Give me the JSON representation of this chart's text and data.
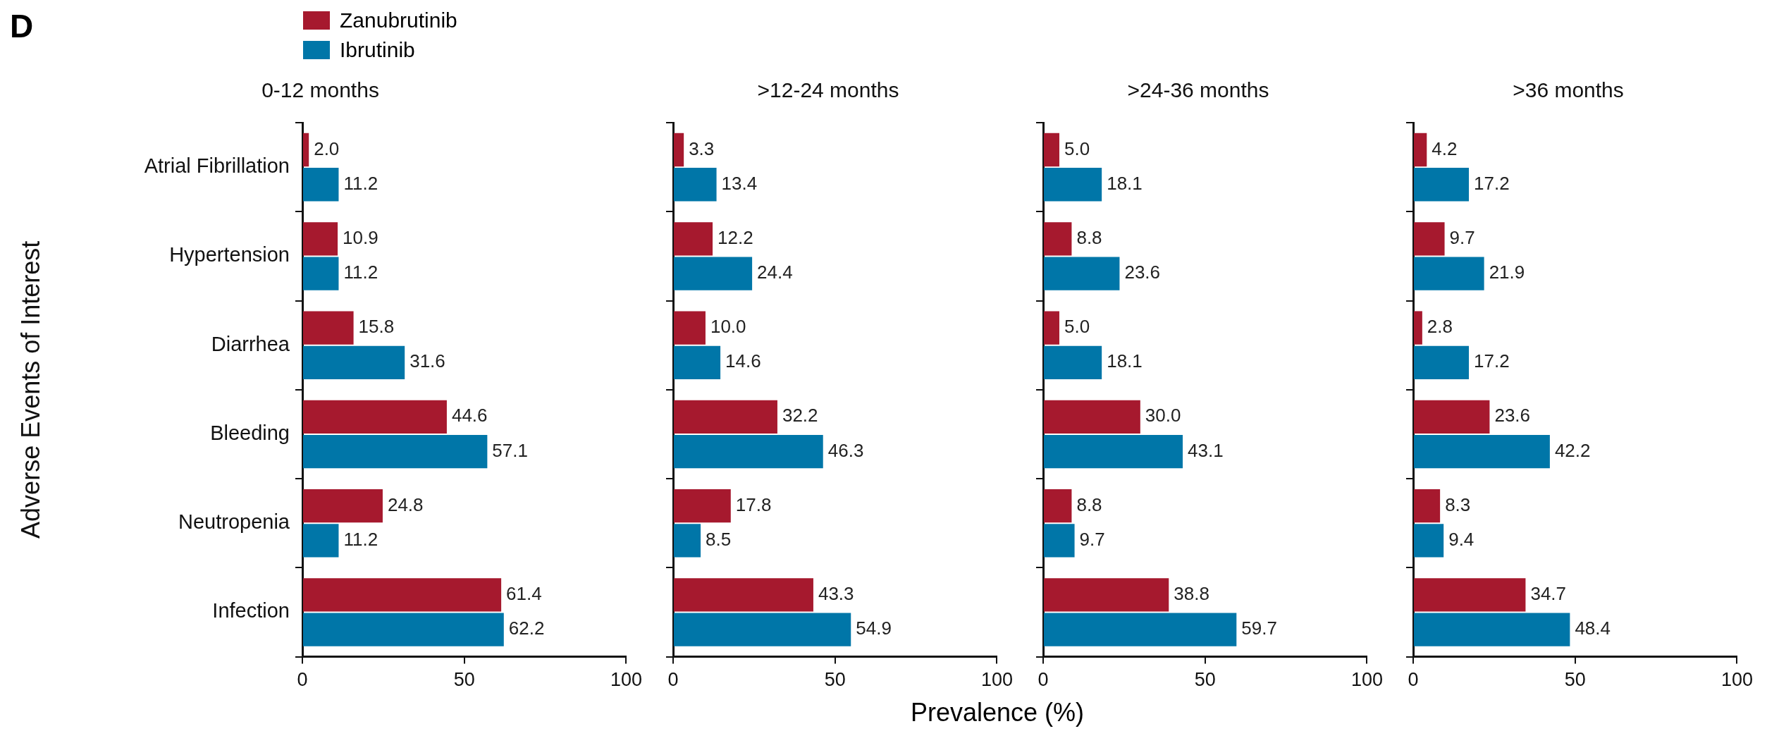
{
  "chart_data": [
    {
      "type": "bar",
      "orientation": "horizontal",
      "title": "0-12 months",
      "ylabel": "Adverse Events of Interest",
      "annotations": [
        "D"
      ],
      "legend": "top left",
      "categories": [
        "Atrial Fibrillation",
        "Hypertension",
        "Diarrhea",
        "Bleeding",
        "Neutropenia",
        "Infection"
      ],
      "series": [
        {
          "name": "Zanubrutinib",
          "color": "#a6192e",
          "values": [
            2.0,
            10.9,
            15.8,
            44.6,
            24.8,
            61.4
          ],
          "value_labels": [
            "2.0",
            "10.9",
            "15.8",
            "44.6",
            "24.8",
            "61.4"
          ]
        },
        {
          "name": "Ibrutinib",
          "color": "#0076a8",
          "values": [
            11.2,
            11.2,
            31.6,
            57.1,
            11.2,
            62.2
          ],
          "value_labels": [
            "11.2",
            "11.2",
            "31.6",
            "57.1",
            "11.2",
            "62.2"
          ]
        }
      ],
      "xlim": [
        0,
        100
      ],
      "xticks": [
        0,
        50,
        100
      ],
      "grid": false
    },
    {
      "type": "bar",
      "orientation": "horizontal",
      "title": ">12-24 months",
      "xlabel": "Prevalence (%)",
      "tick_labels": "x",
      "categories": [
        null,
        null,
        null,
        null,
        null,
        null
      ],
      "series": [
        {
          "color": "#a6192e",
          "values": [
            3.3,
            12.2,
            10.0,
            32.2,
            17.8,
            43.3
          ],
          "value_labels": [
            "3.3",
            "12.2",
            "10.0",
            "32.2",
            "17.8",
            "43.3"
          ]
        },
        {
          "color": "#0076a8",
          "values": [
            13.4,
            24.4,
            14.6,
            46.3,
            8.5,
            54.9
          ],
          "value_labels": [
            "13.4",
            "24.4",
            "14.6",
            "46.3",
            "8.5",
            "54.9"
          ]
        }
      ],
      "xlim": [
        0,
        100
      ],
      "xticks": [
        0,
        50,
        100
      ],
      "grid": false
    },
    {
      "type": "bar",
      "orientation": "horizontal",
      "title": ">24-36 months",
      "tick_labels": "x",
      "categories": [
        null,
        null,
        null,
        null,
        null,
        null
      ],
      "series": [
        {
          "color": "#a6192e",
          "values": [
            5.0,
            8.8,
            5.0,
            30.0,
            8.8,
            38.8
          ],
          "value_labels": [
            "5.0",
            "8.8",
            "5.0",
            "30.0",
            "8.8",
            "38.8"
          ]
        },
        {
          "color": "#0076a8",
          "values": [
            18.1,
            23.6,
            18.1,
            43.1,
            9.7,
            59.7
          ],
          "value_labels": [
            "18.1",
            "23.6",
            "18.1",
            "43.1",
            "9.7",
            "59.7"
          ]
        }
      ],
      "xlim": [
        0,
        100
      ],
      "xticks": [
        0,
        50,
        100
      ],
      "grid": false
    },
    {
      "type": "bar",
      "orientation": "horizontal",
      "title": ">36 months",
      "tick_labels": "x",
      "categories": [
        null,
        null,
        null,
        null,
        null,
        null
      ],
      "series": [
        {
          "color": "#a6192e",
          "values": [
            4.2,
            9.7,
            2.8,
            23.6,
            8.3,
            34.7
          ],
          "value_labels": [
            "4.2",
            "9.7",
            "2.8",
            "23.6",
            "8.3",
            "34.7"
          ]
        },
        {
          "color": "#0076a8",
          "values": [
            17.2,
            21.9,
            17.2,
            42.2,
            9.4,
            48.4
          ],
          "value_labels": [
            "17.2",
            "21.9",
            "17.2",
            "42.2",
            "9.4",
            "48.4"
          ]
        }
      ],
      "xlim": [
        0,
        100
      ],
      "xticks": [
        0,
        50,
        100
      ],
      "grid": false
    }
  ]
}
